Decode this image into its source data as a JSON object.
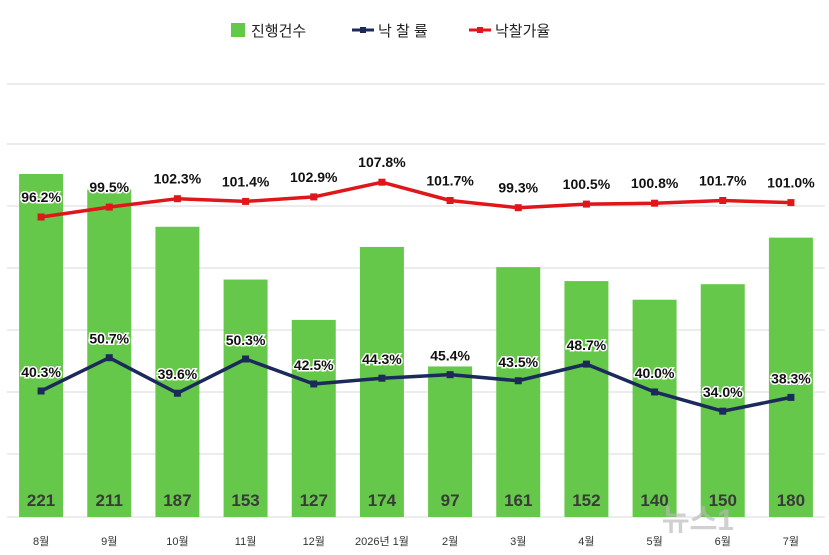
{
  "chart_data": {
    "type": "bar",
    "categories": [
      "8월",
      "9월",
      "10월",
      "11월",
      "12월",
      "2026년 1월",
      "2월",
      "3월",
      "4월",
      "5월",
      "6월",
      "7월"
    ],
    "series": [
      {
        "name": "진행건수",
        "type": "bar",
        "color": "#66c84a",
        "values": [
          221,
          211,
          187,
          153,
          127,
          174,
          97,
          161,
          152,
          140,
          150,
          180
        ]
      },
      {
        "name": "낙 찰 률",
        "type": "line",
        "color": "#1b2a5a",
        "values": [
          40.3,
          50.7,
          39.6,
          50.3,
          42.5,
          44.3,
          45.4,
          43.5,
          48.7,
          40.0,
          34.0,
          38.3
        ]
      },
      {
        "name": "낙찰가율",
        "type": "line",
        "color": "#e0161b",
        "values": [
          96.2,
          99.5,
          102.3,
          101.4,
          102.9,
          107.8,
          101.7,
          99.3,
          100.5,
          100.8,
          101.7,
          101.0
        ]
      }
    ],
    "bar_labels": [
      "221",
      "211",
      "187",
      "153",
      "127",
      "174",
      "97",
      "161",
      "152",
      "140",
      "150",
      "180"
    ],
    "rate_labels": [
      "40.3%",
      "50.7%",
      "39.6%",
      "50.3%",
      "42.5%",
      "44.3%",
      "45.4%",
      "43.5%",
      "48.7%",
      "40.0%",
      "34.0%",
      "38.3%"
    ],
    "price_rate_labels": [
      "96.2%",
      "99.5%",
      "102.3%",
      "101.4%",
      "102.9%",
      "107.8%",
      "101.7%",
      "99.3%",
      "100.5%",
      "100.8%",
      "101.7%",
      "101.0%"
    ],
    "legend_position": "top",
    "grid": true
  },
  "watermark": "뉴스1"
}
